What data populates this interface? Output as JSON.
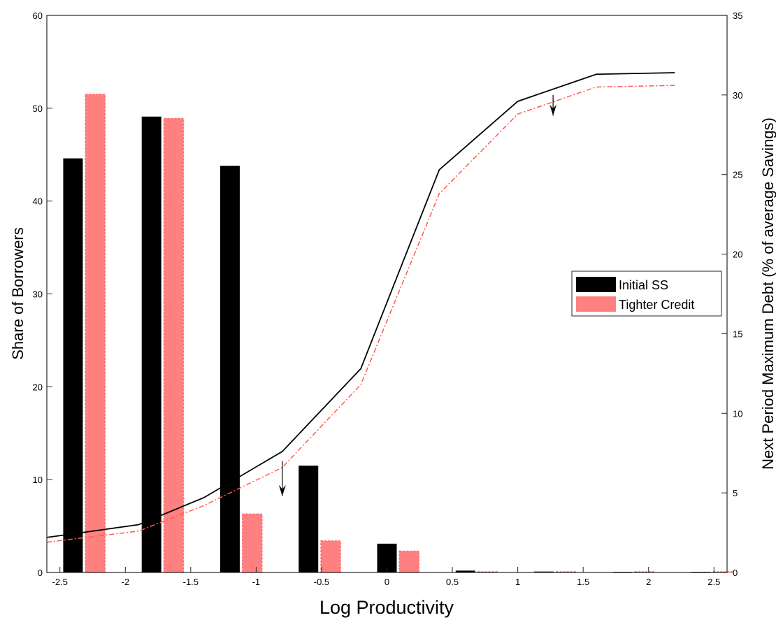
{
  "chart_data": {
    "type": "bar",
    "xlabel": "Log Productivity",
    "ylabel": "Share of Borrowers",
    "y2label": "Next Period Maximum Debt (% of average Savings)",
    "xlim": [
      -2.6,
      2.6
    ],
    "ylim": [
      0,
      60
    ],
    "y2lim": [
      0,
      35
    ],
    "xticks": [
      -2.5,
      -2,
      -1.5,
      -1,
      -0.5,
      0,
      0.5,
      1,
      1.5,
      2,
      2.5
    ],
    "xtick_labels": [
      "-2.5",
      "-2",
      "-1.5",
      "-1",
      "-0.5",
      "0",
      "0.5",
      "1",
      "1.5",
      "2",
      "2.5"
    ],
    "yticks": [
      0,
      10,
      20,
      30,
      40,
      50,
      60
    ],
    "ytick_labels": [
      "0",
      "10",
      "20",
      "30",
      "40",
      "50",
      "60"
    ],
    "y2ticks": [
      0,
      5,
      10,
      15,
      20,
      25,
      30,
      35
    ],
    "y2tick_labels": [
      "0",
      "5",
      "10",
      "15",
      "20",
      "25",
      "30",
      "35"
    ],
    "grid": false,
    "legend_position": "right",
    "bar_groups": [
      {
        "name": "Initial SS",
        "color": "#000000",
        "x": [
          -2.4,
          -1.8,
          -1.2,
          -0.6,
          0.0,
          0.6,
          1.2,
          1.8,
          2.4
        ],
        "values": [
          44.6,
          49.1,
          43.8,
          11.5,
          3.1,
          0.2,
          0.1,
          0.05,
          0.05
        ]
      },
      {
        "name": "Tighter Credit",
        "color": "#ff8080",
        "x": [
          -2.23,
          -1.63,
          -1.03,
          -0.43,
          0.17,
          0.77,
          1.37,
          1.97,
          2.57
        ],
        "values": [
          51.5,
          48.9,
          6.3,
          3.4,
          2.3,
          0.05,
          0.05,
          0.05,
          0.05
        ]
      }
    ],
    "line_series": [
      {
        "color": "#000000",
        "dash": "solid",
        "axis": "right",
        "x": [
          -2.6,
          -1.9,
          -1.4,
          -0.8,
          -0.2,
          0.4,
          1.0,
          1.6,
          2.2
        ],
        "values": [
          2.2,
          3.0,
          4.7,
          7.6,
          12.8,
          25.3,
          29.6,
          31.3,
          31.4
        ]
      },
      {
        "color": "#ff5a4f",
        "dash": "dashdot",
        "axis": "right",
        "x": [
          -2.6,
          -1.9,
          -1.4,
          -0.8,
          -0.2,
          0.4,
          1.0,
          1.6,
          2.2
        ],
        "values": [
          1.9,
          2.6,
          4.2,
          6.6,
          11.8,
          23.8,
          28.8,
          30.5,
          30.6
        ]
      }
    ],
    "arrows": [
      {
        "x": -0.8,
        "from": 7.0,
        "to": 4.8
      },
      {
        "x": 1.27,
        "from": 30.0,
        "to": 28.7
      }
    ]
  }
}
